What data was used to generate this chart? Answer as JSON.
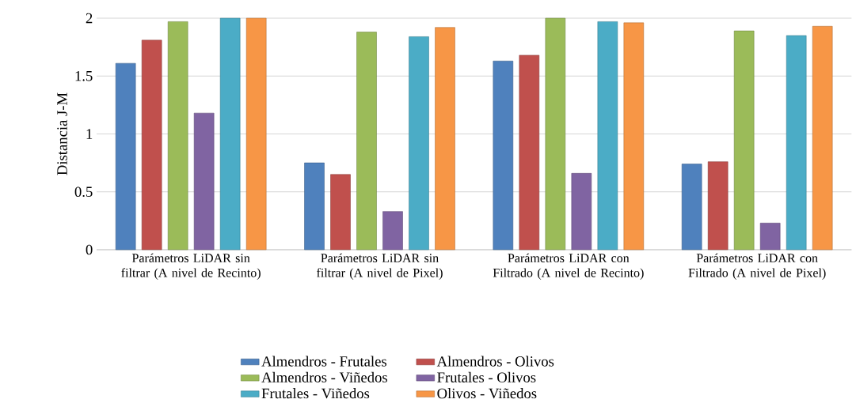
{
  "chart_data": {
    "type": "bar",
    "ylabel": "Distancia J-M",
    "categories": [
      "Parámetros LiDAR sin filtrar (A nivel de Recinto)",
      "Parámetros LiDAR sin filtrar (A nivel de Pixel)",
      "Parámetros LiDAR con Filtrado (A nivel de Recinto)",
      "Parámetros LiDAR con Filtrado (A nivel de Pixel)"
    ],
    "series": [
      {
        "name": "Almendros - Frutales",
        "color": "#4f81bd",
        "values": [
          1.61,
          0.75,
          1.63,
          0.74
        ]
      },
      {
        "name": "Almendros - Olivos",
        "color": "#c0504d",
        "values": [
          1.81,
          0.65,
          1.68,
          0.76
        ]
      },
      {
        "name": "Almendros - Viñedos",
        "color": "#9bbb59",
        "values": [
          1.97,
          1.88,
          2.0,
          1.89
        ]
      },
      {
        "name": "Frutales - Olivos",
        "color": "#8064a2",
        "values": [
          1.18,
          0.33,
          0.66,
          0.23
        ]
      },
      {
        "name": "Frutales - Viñedos",
        "color": "#4bacc6",
        "values": [
          2.0,
          1.84,
          1.97,
          1.85
        ]
      },
      {
        "name": "Olivos - Viñedos",
        "color": "#f79646",
        "values": [
          2.0,
          1.92,
          1.96,
          1.93
        ]
      }
    ],
    "ylim": [
      0,
      2
    ],
    "yticks": [
      0,
      0.5,
      1,
      1.5,
      2
    ],
    "grid": "y",
    "legend": "bottom"
  }
}
